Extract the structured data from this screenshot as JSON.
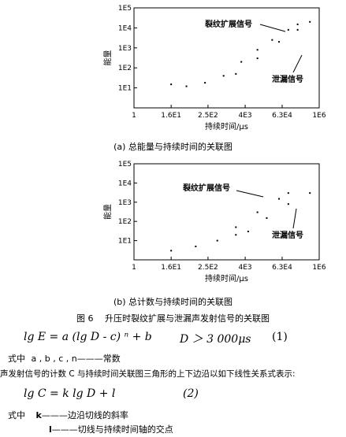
{
  "chart_data": [
    {
      "type": "scatter",
      "title": "(a) 总能量与持续时间的关联图",
      "xlabel": "持续时间/μs",
      "ylabel": "能量",
      "x_scale": "log",
      "y_scale": "log",
      "xlim": [
        1,
        1000000
      ],
      "ylim": [
        1,
        100000
      ],
      "x_ticks": [
        "1",
        "1.6E1",
        "2.5E2",
        "4E3",
        "6.3E4",
        "1E6"
      ],
      "y_ticks": [
        "1E5",
        "1E4",
        "1E3",
        "1E2",
        "1E1"
      ],
      "annotations": [
        "裂纹扩展信号",
        "泄漏信号"
      ],
      "series": [
        {
          "name": "裂纹扩展信号",
          "points": [
            [
              3000,
              200
            ],
            [
              10000,
              800
            ],
            [
              30000,
              2500
            ],
            [
              100000,
              8000
            ],
            [
              200000,
              15000
            ]
          ]
        },
        {
          "name": "泄漏信号",
          "points": [
            [
              2000,
              50
            ],
            [
              10000,
              300
            ],
            [
              50000,
              2000
            ],
            [
              200000,
              8000
            ],
            [
              500000,
              20000
            ]
          ]
        },
        {
          "name": "",
          "points": [
            [
              16,
              15
            ],
            [
              50,
              12
            ],
            [
              200,
              18
            ],
            [
              800,
              40
            ]
          ]
        }
      ]
    },
    {
      "type": "scatter",
      "title": "(b) 总计数与持续时间的关联图",
      "xlabel": "持续时间/μs",
      "ylabel": "能量",
      "x_scale": "log",
      "y_scale": "log",
      "xlim": [
        1,
        1000000
      ],
      "ylim": [
        1,
        100000
      ],
      "x_ticks": [
        "1",
        "1.6E1",
        "2.5E2",
        "4E3",
        "6.3E4",
        "1E6"
      ],
      "y_ticks": [
        "1E5",
        "1E4",
        "1E3",
        "1E2",
        "1E1"
      ],
      "annotations": [
        "裂纹扩展信号",
        "泄漏信号"
      ],
      "series": [
        {
          "name": "裂纹扩展信号",
          "points": [
            [
              2000,
              50
            ],
            [
              10000,
              300
            ],
            [
              50000,
              1500
            ],
            [
              100000,
              3000
            ]
          ]
        },
        {
          "name": "泄漏信号",
          "points": [
            [
              5000,
              30
            ],
            [
              20000,
              150
            ],
            [
              100000,
              800
            ],
            [
              500000,
              3000
            ]
          ]
        },
        {
          "name": "",
          "points": [
            [
              16,
              3
            ],
            [
              100,
              5
            ],
            [
              500,
              10
            ],
            [
              2000,
              20
            ]
          ]
        }
      ]
    }
  ],
  "figure": {
    "caption": "图 6　 升压时裂纹扩展与泄漏声发射信号的关联图"
  },
  "equation1": {
    "formula": "lg E = a (lg D - c) ⁿ + b",
    "condition": "D ＞ 3 000μs",
    "number": "(1)"
  },
  "where1": {
    "label": "式中",
    "vars": "a , b , c , n",
    "desc": "———常数"
  },
  "paragraph": "声发射信号的计数 C 与持续时间关联图三角形的上下边沿以如下线性关系式表示:",
  "equation2": {
    "formula": "lg C = k lg D + l",
    "number": "(2)"
  },
  "where2": {
    "label": "式中",
    "k_var": "k",
    "k_desc": "———边沿切线的斜率",
    "l_var": "l",
    "l_desc": "———切线与持续时间轴的交点"
  }
}
